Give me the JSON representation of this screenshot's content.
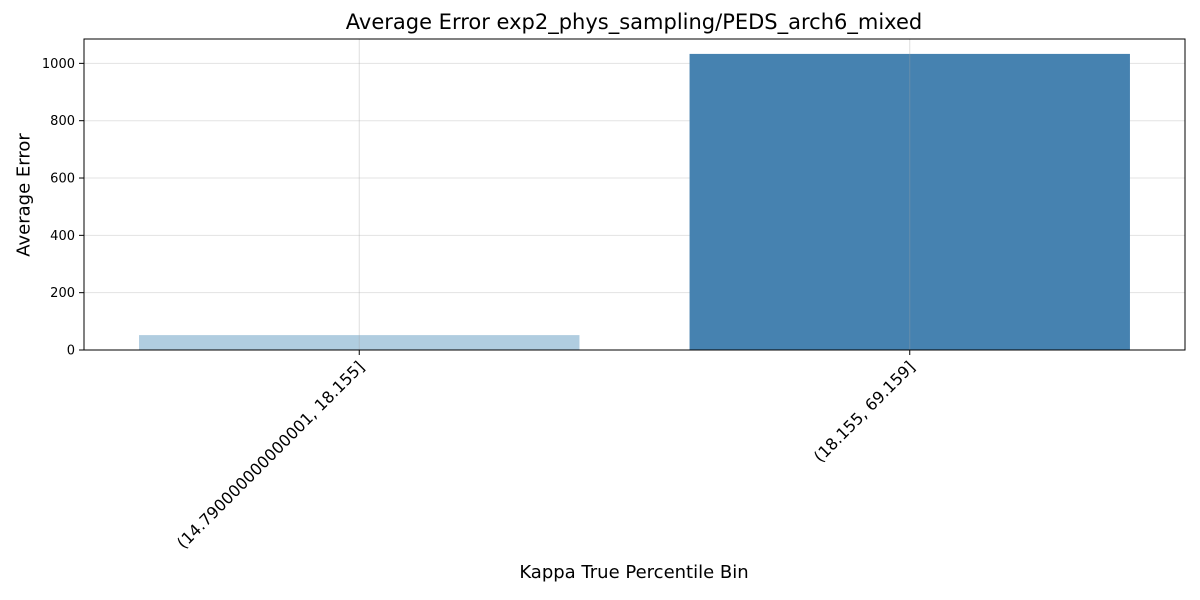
{
  "chart_data": {
    "type": "bar",
    "title": "Average Error exp2_phys_sampling/PEDS_arch6_mixed",
    "xlabel": "Kappa True Percentile Bin",
    "ylabel": "Average Error",
    "categories": [
      "(14.790000000000001, 18.155]",
      "(18.155, 69.159]"
    ],
    "values": [
      52,
      1033
    ],
    "colors": [
      "#b0cde0",
      "#4682b0"
    ],
    "ylim": [
      0,
      1085
    ],
    "yticks": [
      0,
      200,
      400,
      600,
      800,
      1000
    ],
    "grid": true,
    "legend": "none"
  }
}
